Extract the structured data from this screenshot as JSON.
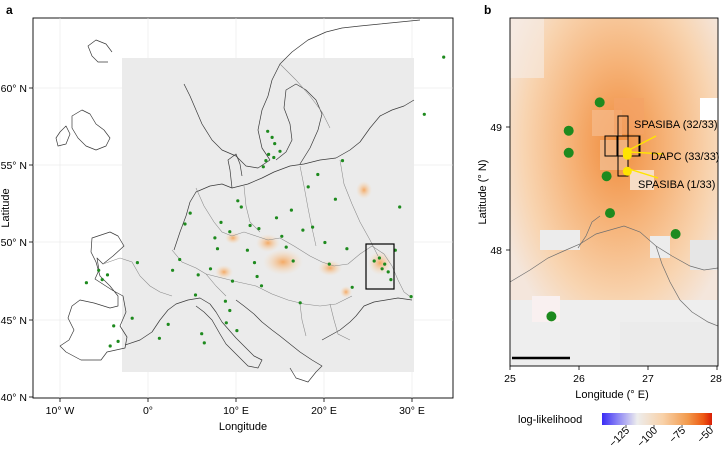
{
  "panel_a": {
    "label": "a",
    "xlabel": "Longitude",
    "ylabel": "Latitude",
    "x_ticks": [
      "10° W",
      "0°",
      "10° E",
      "20° E",
      "30° E"
    ],
    "y_ticks": [
      "40° N",
      "45° N",
      "50° N",
      "55° N",
      "60° N"
    ]
  },
  "panel_b": {
    "label": "b",
    "xlabel": "Longitude (° E)",
    "ylabel": "Latitude (° N)",
    "x_ticks": [
      "25",
      "26",
      "27",
      "28"
    ],
    "y_ticks": [
      "48",
      "49"
    ],
    "annotations": [
      "SPASIBA (32/33)",
      "DAPC (33/33)",
      "SPASIBA (1/33)"
    ]
  },
  "colorbar": {
    "label": "log-likelihood",
    "ticks": [
      "−125",
      "−100",
      "−75",
      "−50"
    ],
    "colors": [
      "#3a2cf5",
      "#b9b5f5",
      "#ededed",
      "#f8d2aa",
      "#f29a4c",
      "#ee5a14",
      "#d81e05"
    ]
  },
  "colors": {
    "samples": "#1e8a1e",
    "predicted": "#ffe400",
    "land": "#ebebeb"
  },
  "chart_data": [
    {
      "type": "scatter",
      "title": "",
      "xlabel": "Longitude",
      "ylabel": "Latitude",
      "xlim": [
        -11,
        36
      ],
      "ylim": [
        40,
        64
      ],
      "series": [
        {
          "x": [
            -7.0,
            -5.6,
            -5.2,
            -4.6,
            -4.3,
            -3.9,
            -3.4,
            -1.8,
            -1.2,
            1.3,
            2.3,
            2.8,
            3.6,
            4.2,
            4.8,
            5.4,
            5.7,
            6.1,
            6.4,
            7.1,
            7.6,
            7.9,
            8.3,
            8.8,
            9.3,
            9.6,
            10.2,
            10.6,
            11.3,
            11.6,
            12.1,
            12.4,
            12.6,
            13.1,
            13.4,
            13.7,
            14.3,
            14.6,
            15.2,
            15.7,
            16.3,
            16.5,
            17.3,
            17.6,
            18.2,
            18.7,
            19.3,
            20.1,
            20.6,
            21.3,
            22.1,
            22.6,
            23.2,
            25.7,
            26.3,
            26.6,
            26.9,
            27.3,
            27.6,
            28.1,
            28.6,
            29.9,
            31.4,
            33.6,
            13.6,
            14.1,
            14.4,
            15.0,
            12.9,
            8.9,
            9.3,
            10.1
          ],
          "y": [
            47.4,
            48.2,
            47.6,
            47.9,
            43.3,
            44.6,
            43.6,
            45.1,
            48.7,
            43.8,
            44.7,
            48.2,
            48.9,
            51.2,
            51.9,
            46.6,
            47.9,
            44.1,
            43.5,
            48.3,
            50.3,
            49.6,
            51.3,
            46.2,
            50.7,
            47.5,
            52.7,
            52.3,
            49.5,
            51.1,
            48.7,
            47.8,
            50.9,
            54.9,
            55.3,
            55.7,
            55.5,
            51.6,
            50.4,
            49.7,
            52.1,
            48.8,
            46.1,
            50.8,
            53.6,
            51.0,
            54.4,
            50.0,
            48.6,
            52.8,
            55.3,
            49.6,
            47.1,
            48.8,
            49.0,
            48.3,
            48.6,
            48.1,
            47.6,
            49.5,
            52.3,
            46.5,
            58.3,
            62.0,
            57.2,
            56.8,
            56.4,
            55.9,
            47.2,
            44.8,
            45.6,
            44.3
          ]
        }
      ]
    },
    {
      "type": "heatmap",
      "title": "",
      "xlabel": "Longitude (° E)",
      "ylabel": "Latitude (° N)",
      "xlim": [
        25,
        28
      ],
      "ylim": [
        47.1,
        49.6
      ],
      "series": [
        {
          "name": "samples",
          "x": [
            25.85,
            26.3,
            25.85,
            26.4,
            26.45,
            27.4,
            25.6
          ],
          "y": [
            48.97,
            49.2,
            48.79,
            48.6,
            48.3,
            48.13,
            47.46
          ]
        },
        {
          "name": "predicted",
          "x": [
            26.7,
            26.7,
            26.7
          ],
          "y": [
            48.8,
            48.77,
            48.64
          ]
        }
      ],
      "annotations": [
        "SPASIBA (32/33)",
        "DAPC (33/33)",
        "SPASIBA (1/33)"
      ]
    }
  ]
}
